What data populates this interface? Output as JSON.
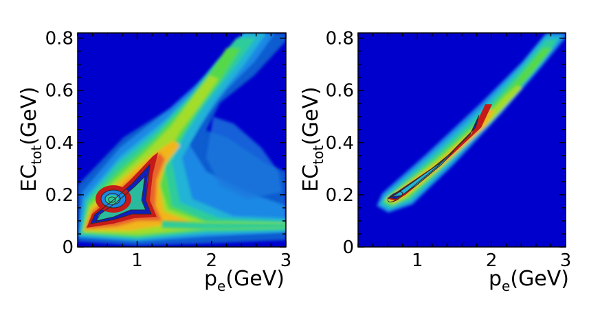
{
  "chart_data": [
    {
      "type": "heatmap",
      "panel": "left",
      "xlabel": {
        "main": "p",
        "sub": "e",
        "unit": "(GeV)"
      },
      "ylabel": {
        "main": "EC",
        "sub": "tot",
        "unit": "(GeV)"
      },
      "xlim": [
        0.2,
        3.0
      ],
      "ylim": [
        0.0,
        0.82
      ],
      "x_ticks": [
        {
          "value": 1,
          "label": "1"
        },
        {
          "value": 2,
          "label": "2"
        },
        {
          "value": 3,
          "label": "3"
        }
      ],
      "y_ticks": [
        {
          "value": 0,
          "label": "0"
        },
        {
          "value": 0.2,
          "label": "0.2"
        },
        {
          "value": 0.4,
          "label": "0.4"
        },
        {
          "value": 0.6,
          "label": "0.6"
        },
        {
          "value": 0.8,
          "label": "0.8"
        }
      ],
      "background_color": "#0000CC",
      "color_levels": [
        "#0000CC",
        "#0A5BD0",
        "#1E88E5",
        "#22B3D6",
        "#2ECC9A",
        "#55D94A",
        "#A3DD2A",
        "#F2B51E",
        "#E8652B",
        "#C41A1A"
      ],
      "structures": [
        {
          "name": "electron band",
          "x_range": [
            0.3,
            3.0
          ],
          "y_range": [
            0.05,
            0.82
          ],
          "description_shape": "diagonal ridge EC ~ 0.27 p"
        },
        {
          "name": "pion band",
          "x_range": [
            0.3,
            3.0
          ],
          "y_range": [
            0.05,
            0.1
          ],
          "description_shape": "horizontal band near 0.08"
        },
        {
          "name": "peak",
          "x": 0.6,
          "y": 0.18
        }
      ]
    },
    {
      "type": "heatmap",
      "panel": "right",
      "xlabel": {
        "main": "p",
        "sub": "e",
        "unit": "(GeV)"
      },
      "ylabel": {
        "main": "EC",
        "sub": "tot",
        "unit": "(GeV)"
      },
      "xlim": [
        0.2,
        3.0
      ],
      "ylim": [
        0.0,
        0.82
      ],
      "x_ticks": [
        {
          "value": 1,
          "label": "1"
        },
        {
          "value": 2,
          "label": "2"
        },
        {
          "value": 3,
          "label": "3"
        }
      ],
      "y_ticks": [
        {
          "value": 0,
          "label": "0"
        },
        {
          "value": 0.2,
          "label": "0.2"
        },
        {
          "value": 0.4,
          "label": "0.4"
        },
        {
          "value": 0.6,
          "label": "0.6"
        },
        {
          "value": 0.8,
          "label": "0.8"
        }
      ],
      "background_color": "#0000CC",
      "color_levels": [
        "#0000CC",
        "#0A5BD0",
        "#1E88E5",
        "#22B3D6",
        "#2ECC9A",
        "#55D94A",
        "#A3DD2A",
        "#F2B51E",
        "#E8652B",
        "#C41A1A"
      ],
      "structures": [
        {
          "name": "electron band",
          "x_range": [
            0.4,
            3.0
          ],
          "y_range": [
            0.13,
            0.82
          ],
          "description_shape": "narrow diagonal ridge EC ~ 0.27 p"
        },
        {
          "name": "peak",
          "x": 0.65,
          "y": 0.18
        }
      ]
    }
  ]
}
